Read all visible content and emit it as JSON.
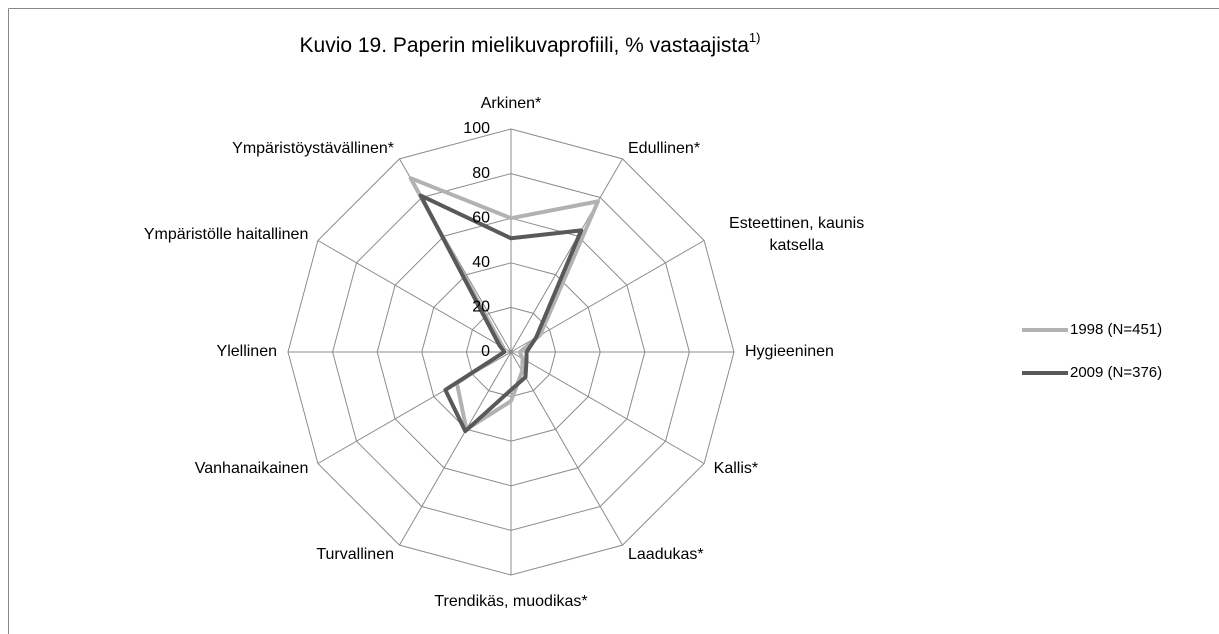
{
  "chart_data": {
    "type": "radar",
    "title": "Kuvio 19. Paperin mielikuvaprofiili, % vastaajista",
    "title_note": "1)",
    "categories": [
      "Arkinen*",
      "Edullinen*",
      "Esteettinen, kaunis katsella",
      "Hygieeninen",
      "Kallis*",
      "Laadukas*",
      "Trendikäs, muodikas*",
      "Turvallinen",
      "Vanhanaikainen",
      "Ylellinen",
      "Ympäristölle haitallinen",
      "Ympäristöystävällinen*"
    ],
    "series": [
      {
        "name": "1998 (N=451)",
        "color": "#b2b2b2",
        "values": [
          60,
          78,
          15,
          4,
          6,
          10,
          22,
          40,
          28,
          3,
          4,
          90
        ]
      },
      {
        "name": "2009 (N=376)",
        "color": "#595959",
        "values": [
          51,
          63,
          13,
          7,
          8,
          13,
          17,
          41,
          34,
          3,
          6,
          81
        ]
      }
    ],
    "ylim": [
      0,
      100
    ],
    "yticks": [
      0,
      20,
      40,
      60,
      80,
      100
    ],
    "grid": true,
    "legend": "right"
  }
}
